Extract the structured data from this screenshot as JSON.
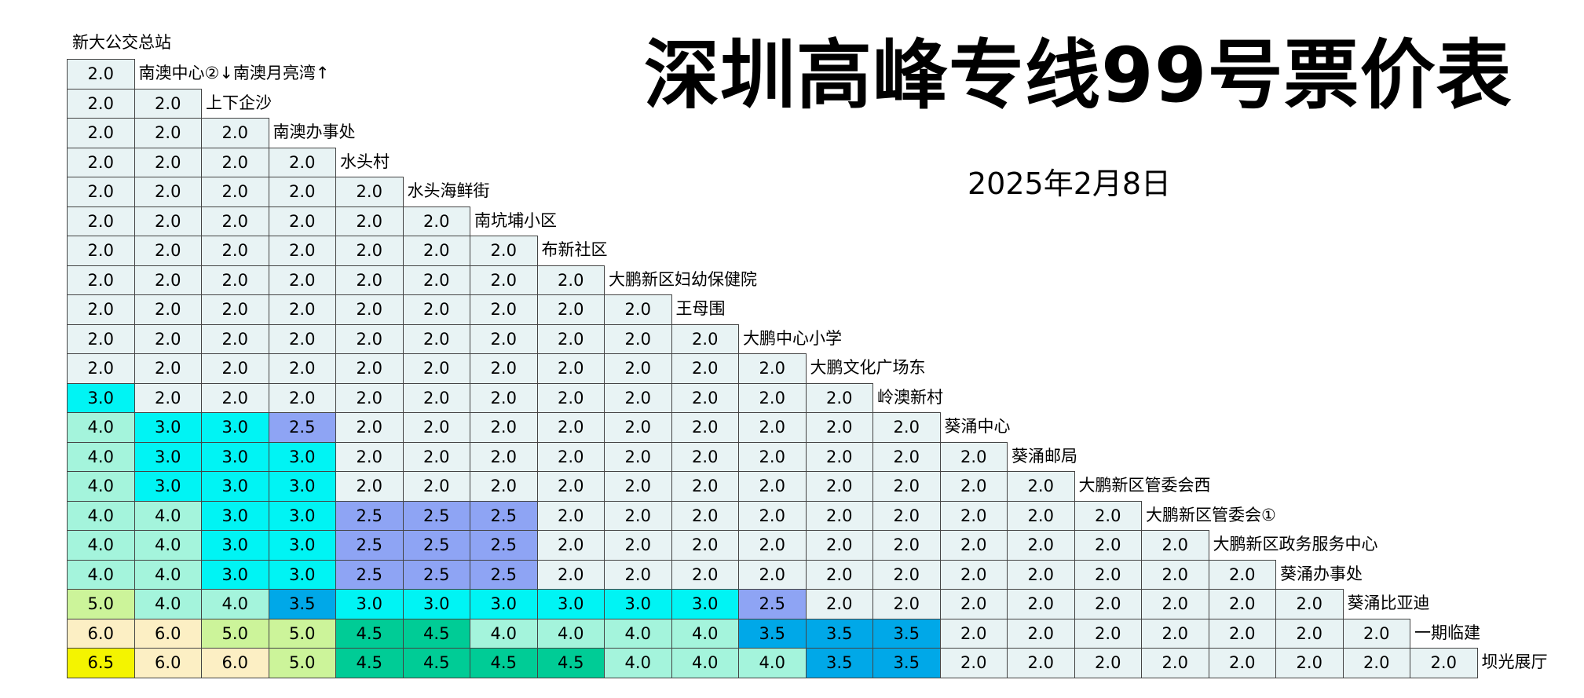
{
  "title": "深圳高峰专线99号票价表",
  "date": "2025年2月8日",
  "first_station": "新大公交总站",
  "stations": [
    "南澳中心②↓南澳月亮湾↑",
    "上下企沙",
    "南澳办事处",
    "水头村",
    "水头海鲜街",
    "南坑埔小区",
    "布新社区",
    "大鹏新区妇幼保健院",
    "王母围",
    "大鹏中心小学",
    "大鹏文化广场东",
    "岭澳新村",
    "葵涌中心",
    "葵涌邮局",
    "大鹏新区管委会西",
    "大鹏新区管委会①",
    "大鹏新区政务服务中心",
    "葵涌办事处",
    "葵涌比亚迪",
    "一期临建",
    "坝光展厅"
  ],
  "fares": [
    [
      "2.0"
    ],
    [
      "2.0",
      "2.0"
    ],
    [
      "2.0",
      "2.0",
      "2.0"
    ],
    [
      "2.0",
      "2.0",
      "2.0",
      "2.0"
    ],
    [
      "2.0",
      "2.0",
      "2.0",
      "2.0",
      "2.0"
    ],
    [
      "2.0",
      "2.0",
      "2.0",
      "2.0",
      "2.0",
      "2.0"
    ],
    [
      "2.0",
      "2.0",
      "2.0",
      "2.0",
      "2.0",
      "2.0",
      "2.0"
    ],
    [
      "2.0",
      "2.0",
      "2.0",
      "2.0",
      "2.0",
      "2.0",
      "2.0",
      "2.0"
    ],
    [
      "2.0",
      "2.0",
      "2.0",
      "2.0",
      "2.0",
      "2.0",
      "2.0",
      "2.0",
      "2.0"
    ],
    [
      "2.0",
      "2.0",
      "2.0",
      "2.0",
      "2.0",
      "2.0",
      "2.0",
      "2.0",
      "2.0",
      "2.0"
    ],
    [
      "2.0",
      "2.0",
      "2.0",
      "2.0",
      "2.0",
      "2.0",
      "2.0",
      "2.0",
      "2.0",
      "2.0",
      "2.0"
    ],
    [
      "3.0",
      "2.0",
      "2.0",
      "2.0",
      "2.0",
      "2.0",
      "2.0",
      "2.0",
      "2.0",
      "2.0",
      "2.0",
      "2.0"
    ],
    [
      "4.0",
      "3.0",
      "3.0",
      "2.5",
      "2.0",
      "2.0",
      "2.0",
      "2.0",
      "2.0",
      "2.0",
      "2.0",
      "2.0",
      "2.0"
    ],
    [
      "4.0",
      "3.0",
      "3.0",
      "3.0",
      "2.0",
      "2.0",
      "2.0",
      "2.0",
      "2.0",
      "2.0",
      "2.0",
      "2.0",
      "2.0",
      "2.0"
    ],
    [
      "4.0",
      "3.0",
      "3.0",
      "3.0",
      "2.0",
      "2.0",
      "2.0",
      "2.0",
      "2.0",
      "2.0",
      "2.0",
      "2.0",
      "2.0",
      "2.0",
      "2.0"
    ],
    [
      "4.0",
      "4.0",
      "3.0",
      "3.0",
      "2.5",
      "2.5",
      "2.5",
      "2.0",
      "2.0",
      "2.0",
      "2.0",
      "2.0",
      "2.0",
      "2.0",
      "2.0",
      "2.0"
    ],
    [
      "4.0",
      "4.0",
      "3.0",
      "3.0",
      "2.5",
      "2.5",
      "2.5",
      "2.0",
      "2.0",
      "2.0",
      "2.0",
      "2.0",
      "2.0",
      "2.0",
      "2.0",
      "2.0",
      "2.0"
    ],
    [
      "4.0",
      "4.0",
      "3.0",
      "3.0",
      "2.5",
      "2.5",
      "2.5",
      "2.0",
      "2.0",
      "2.0",
      "2.0",
      "2.0",
      "2.0",
      "2.0",
      "2.0",
      "2.0",
      "2.0",
      "2.0"
    ],
    [
      "5.0",
      "4.0",
      "4.0",
      "3.5",
      "3.0",
      "3.0",
      "3.0",
      "3.0",
      "3.0",
      "3.0",
      "2.5",
      "2.0",
      "2.0",
      "2.0",
      "2.0",
      "2.0",
      "2.0",
      "2.0",
      "2.0"
    ],
    [
      "6.0",
      "6.0",
      "5.0",
      "5.0",
      "4.5",
      "4.5",
      "4.0",
      "4.0",
      "4.0",
      "4.0",
      "3.5",
      "3.5",
      "3.5",
      "2.0",
      "2.0",
      "2.0",
      "2.0",
      "2.0",
      "2.0",
      "2.0"
    ],
    [
      "6.5",
      "6.0",
      "6.0",
      "5.0",
      "4.5",
      "4.5",
      "4.5",
      "4.5",
      "4.0",
      "4.0",
      "4.0",
      "3.5",
      "3.5",
      "2.0",
      "2.0",
      "2.0",
      "2.0",
      "2.0",
      "2.0",
      "2.0",
      "2.0"
    ]
  ],
  "fare_colors": {
    "2.0": "#e8f3f4",
    "2.5": "#8ea4f4",
    "3.0": "#00f4f4",
    "3.5": "#00a8e8",
    "4.0": "#a4f4dc",
    "4.5": "#00cc96",
    "5.0": "#ccf49a",
    "6.0": "#fcefc4",
    "6.5": "#f4f400"
  }
}
